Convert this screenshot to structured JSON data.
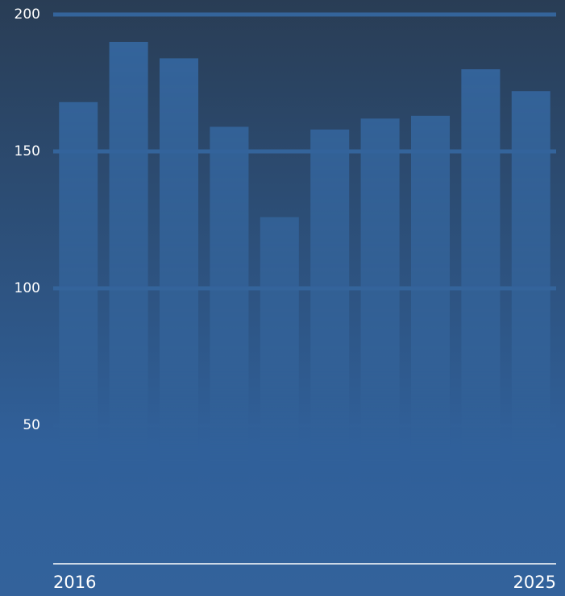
{
  "chart_data": {
    "type": "bar",
    "categories": [
      "2016",
      null,
      null,
      null,
      null,
      null,
      null,
      null,
      null,
      "2025"
    ],
    "values": [
      168,
      190,
      184,
      159,
      126,
      158,
      162,
      163,
      180,
      172
    ],
    "color": "#34649b",
    "ylim": [
      0,
      200
    ],
    "yticks": [
      50,
      100,
      150,
      200
    ],
    "grid": true
  }
}
